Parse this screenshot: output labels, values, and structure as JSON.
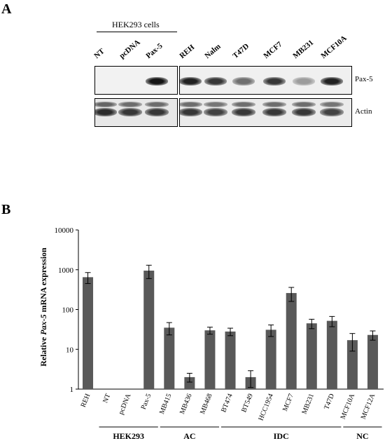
{
  "panel_a": {
    "letter": "A",
    "group_label": "HEK293 cells",
    "hek_lanes": [
      "NT",
      "pcDNA",
      "Pax-5"
    ],
    "cell_lanes": [
      "REH",
      "Nalm",
      "T47D",
      "MCF7",
      "MB231",
      "MCF10A"
    ],
    "row_labels": {
      "pax5": "Pax-5",
      "actin": "Actin"
    },
    "pax5_band_intensity": [
      0,
      0,
      0.95,
      0.9,
      0.8,
      0.55,
      0.8,
      0.35,
      0.9
    ],
    "actin_band_intensity": [
      0.85,
      0.8,
      0.8,
      0.8,
      0.75,
      0.8,
      0.8,
      0.8,
      0.75
    ]
  },
  "panel_b": {
    "letter": "B",
    "groups": [
      {
        "label": "HEK293",
        "from": 1,
        "to": 3
      },
      {
        "label": "AC",
        "from": 4,
        "to": 6
      },
      {
        "label": "IDC",
        "from": 7,
        "to": 12
      },
      {
        "label": "NC",
        "from": 13,
        "to": 14
      }
    ]
  },
  "chart_data": {
    "type": "bar",
    "ylabel_prefix": "Relative ",
    "ylabel_italic": "Pax-5",
    "ylabel_suffix": " mRNA expression",
    "yscale": "log",
    "ylim": [
      1,
      10000
    ],
    "yticks": [
      "1",
      "10",
      "100",
      "1000",
      "10000"
    ],
    "categories": [
      "REH",
      "NT",
      "pcDNA",
      "Pax-5",
      "MB415",
      "MB436",
      "MB468",
      "BT474",
      "BT549",
      "HCC1954",
      "MCF7",
      "MB231",
      "T47D",
      "MCF10A",
      "MCF12A"
    ],
    "values": [
      650,
      null,
      null,
      950,
      35,
      2,
      30,
      28,
      2,
      31,
      260,
      45,
      52,
      17,
      23
    ],
    "errors": [
      200,
      null,
      null,
      350,
      12,
      0.5,
      6,
      6,
      0.9,
      10,
      100,
      12,
      15,
      8,
      6
    ],
    "bar_color": "#595959"
  }
}
